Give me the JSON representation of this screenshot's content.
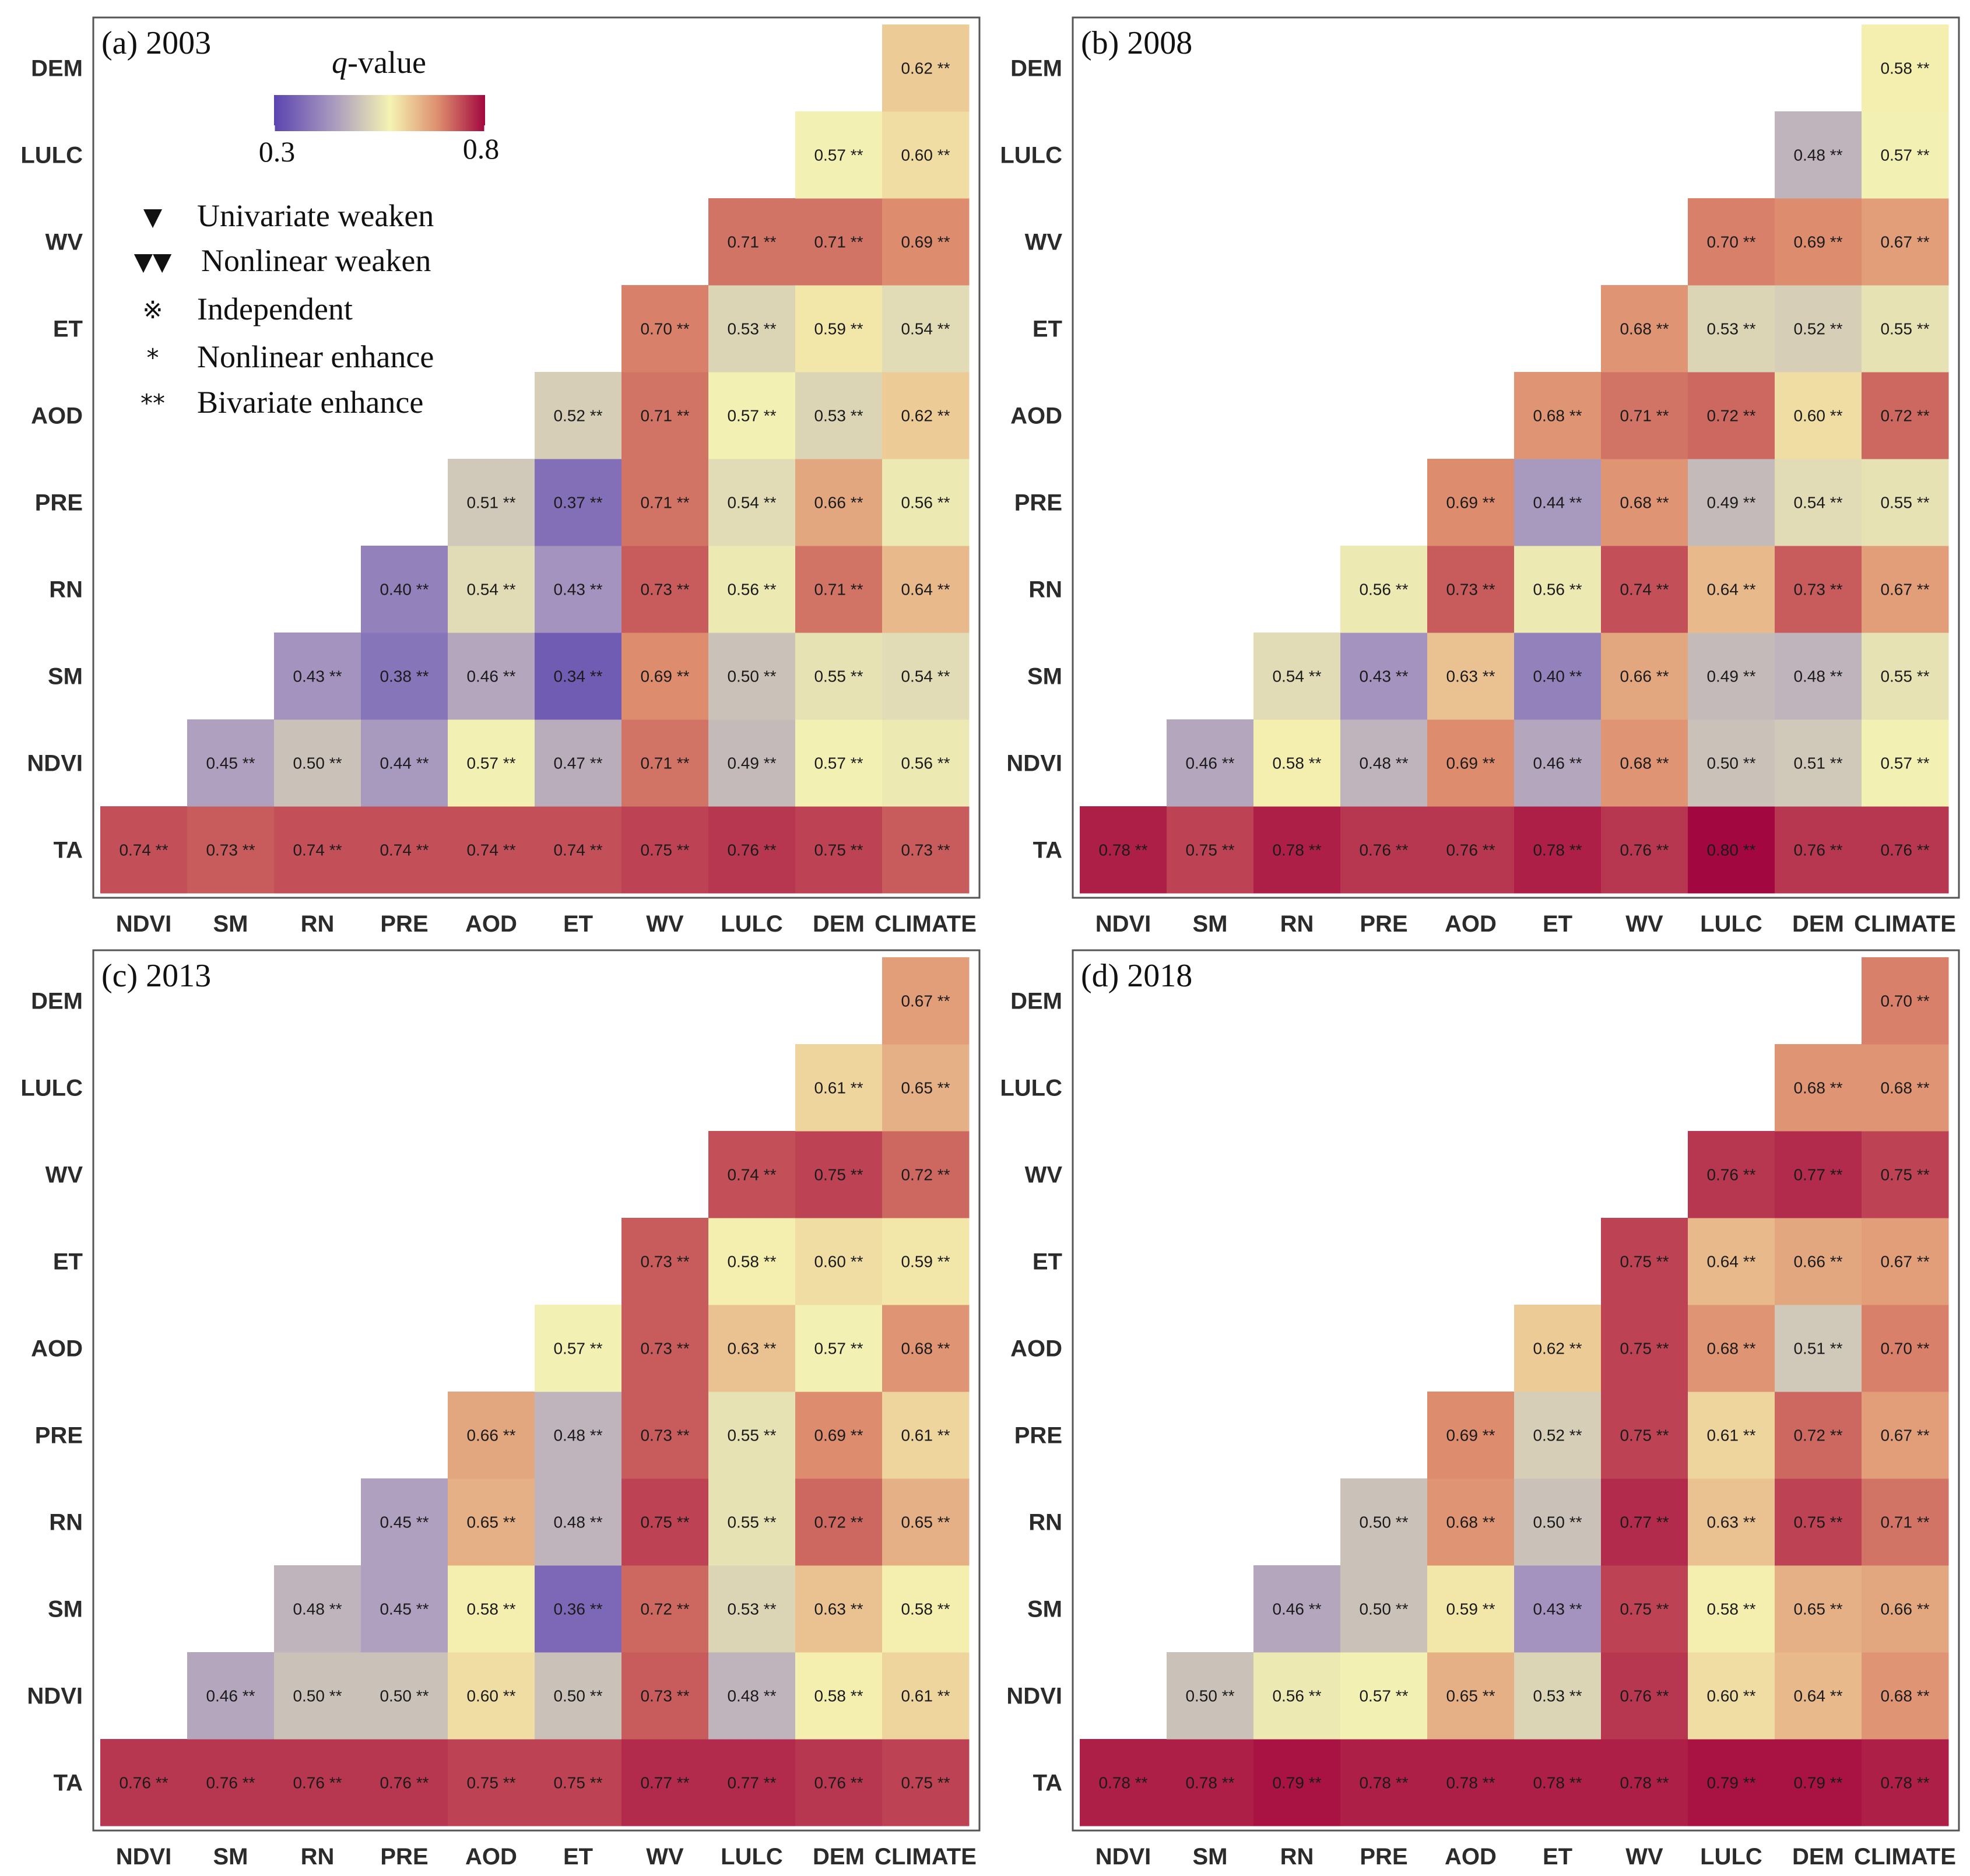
{
  "colors": {
    "low": "#5b44b0",
    "mid_low": "#a899bf",
    "mid": "#f5f3b2",
    "mid_high": "#dd8c6d",
    "high": "#a3073f",
    "frame": "#555555"
  },
  "legend": {
    "title_italic": "q",
    "title_rest": "-value",
    "min_label": "0.3",
    "max_label": "0.8",
    "items": [
      {
        "symbol": "▼",
        "label": "Univariate weaken"
      },
      {
        "symbol": "▼▼",
        "label": "Nonlinear weaken"
      },
      {
        "symbol": "※",
        "label": "Independent"
      },
      {
        "symbol": "*",
        "label": "Nonlinear enhance"
      },
      {
        "symbol": "**",
        "label": "Bivariate enhance"
      }
    ]
  },
  "chart_data": [
    {
      "type": "heatmap",
      "title": "(a) 2003",
      "x_categories": [
        "NDVI",
        "SM",
        "RN",
        "PRE",
        "AOD",
        "ET",
        "WV",
        "LULC",
        "DEM",
        "CLIMATE"
      ],
      "y_categories": [
        "TA",
        "NDVI",
        "SM",
        "RN",
        "PRE",
        "AOD",
        "ET",
        "WV",
        "LULC",
        "DEM"
      ],
      "marker": "**",
      "value_range": [
        0.3,
        0.8
      ],
      "values": [
        [
          0.74,
          0.73,
          0.74,
          0.74,
          0.74,
          0.74,
          0.75,
          0.76,
          0.75,
          0.73
        ],
        [
          0.45,
          0.5,
          0.44,
          0.57,
          0.47,
          0.71,
          0.49,
          0.57,
          0.56
        ],
        [
          0.43,
          0.38,
          0.46,
          0.34,
          0.69,
          0.5,
          0.55,
          0.54
        ],
        [
          0.4,
          0.54,
          0.43,
          0.73,
          0.56,
          0.71,
          0.64
        ],
        [
          0.51,
          0.37,
          0.71,
          0.54,
          0.66,
          0.56
        ],
        [
          0.52,
          0.71,
          0.57,
          0.53,
          0.62
        ],
        [
          0.7,
          0.53,
          0.59,
          0.54
        ],
        [
          0.71,
          0.71,
          0.69
        ],
        [
          0.57,
          0.6
        ],
        [
          0.62
        ]
      ]
    },
    {
      "type": "heatmap",
      "title": "(b) 2008",
      "x_categories": [
        "NDVI",
        "SM",
        "RN",
        "PRE",
        "AOD",
        "ET",
        "WV",
        "LULC",
        "DEM",
        "CLIMATE"
      ],
      "y_categories": [
        "TA",
        "NDVI",
        "SM",
        "RN",
        "PRE",
        "AOD",
        "ET",
        "WV",
        "LULC",
        "DEM"
      ],
      "marker": "**",
      "value_range": [
        0.3,
        0.8
      ],
      "values": [
        [
          0.78,
          0.75,
          0.78,
          0.76,
          0.76,
          0.78,
          0.76,
          0.8,
          0.76,
          0.76
        ],
        [
          0.46,
          0.58,
          0.48,
          0.69,
          0.46,
          0.68,
          0.5,
          0.51,
          0.57
        ],
        [
          0.54,
          0.43,
          0.63,
          0.4,
          0.66,
          0.49,
          0.48,
          0.55
        ],
        [
          0.56,
          0.73,
          0.56,
          0.74,
          0.64,
          0.73,
          0.67
        ],
        [
          0.69,
          0.44,
          0.68,
          0.49,
          0.54,
          0.55
        ],
        [
          0.68,
          0.71,
          0.72,
          0.6,
          0.72
        ],
        [
          0.68,
          0.53,
          0.52,
          0.55
        ],
        [
          0.7,
          0.69,
          0.67
        ],
        [
          0.48,
          0.57
        ],
        [
          0.58
        ]
      ]
    },
    {
      "type": "heatmap",
      "title": "(c) 2013",
      "x_categories": [
        "NDVI",
        "SM",
        "RN",
        "PRE",
        "AOD",
        "ET",
        "WV",
        "LULC",
        "DEM",
        "CLIMATE"
      ],
      "y_categories": [
        "TA",
        "NDVI",
        "SM",
        "RN",
        "PRE",
        "AOD",
        "ET",
        "WV",
        "LULC",
        "DEM"
      ],
      "marker": "**",
      "value_range": [
        0.3,
        0.8
      ],
      "values": [
        [
          0.76,
          0.76,
          0.76,
          0.76,
          0.75,
          0.75,
          0.77,
          0.77,
          0.76,
          0.75
        ],
        [
          0.46,
          0.5,
          0.5,
          0.6,
          0.5,
          0.73,
          0.48,
          0.58,
          0.61
        ],
        [
          0.48,
          0.45,
          0.58,
          0.36,
          0.72,
          0.53,
          0.63,
          0.58
        ],
        [
          0.45,
          0.65,
          0.48,
          0.75,
          0.55,
          0.72,
          0.65
        ],
        [
          0.66,
          0.48,
          0.73,
          0.55,
          0.69,
          0.61
        ],
        [
          0.57,
          0.73,
          0.63,
          0.57,
          0.68
        ],
        [
          0.73,
          0.58,
          0.6,
          0.59
        ],
        [
          0.74,
          0.75,
          0.72
        ],
        [
          0.61,
          0.65
        ],
        [
          0.67
        ]
      ]
    },
    {
      "type": "heatmap",
      "title": "(d) 2018",
      "x_categories": [
        "NDVI",
        "SM",
        "RN",
        "PRE",
        "AOD",
        "ET",
        "WV",
        "LULC",
        "DEM",
        "CLIMATE"
      ],
      "y_categories": [
        "TA",
        "NDVI",
        "SM",
        "RN",
        "PRE",
        "AOD",
        "ET",
        "WV",
        "LULC",
        "DEM"
      ],
      "marker": "**",
      "value_range": [
        0.3,
        0.8
      ],
      "values": [
        [
          0.78,
          0.78,
          0.79,
          0.78,
          0.78,
          0.78,
          0.78,
          0.79,
          0.79,
          0.78
        ],
        [
          0.5,
          0.56,
          0.57,
          0.65,
          0.53,
          0.76,
          0.6,
          0.64,
          0.68
        ],
        [
          0.46,
          0.5,
          0.59,
          0.43,
          0.75,
          0.58,
          0.65,
          0.66
        ],
        [
          0.5,
          0.68,
          0.5,
          0.77,
          0.63,
          0.75,
          0.71
        ],
        [
          0.69,
          0.52,
          0.75,
          0.61,
          0.72,
          0.67
        ],
        [
          0.62,
          0.75,
          0.68,
          0.51,
          0.7
        ],
        [
          0.75,
          0.64,
          0.66,
          0.67
        ],
        [
          0.76,
          0.77,
          0.75
        ],
        [
          0.68,
          0.68
        ],
        [
          0.7
        ]
      ]
    }
  ]
}
